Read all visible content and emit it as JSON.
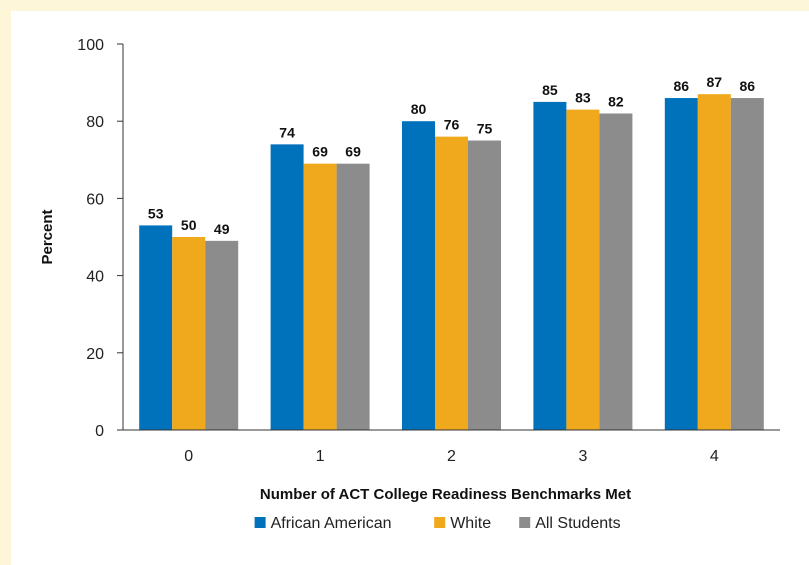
{
  "chart_data": {
    "type": "bar",
    "title": "",
    "xlabel": "Number of ACT College Readiness Benchmarks Met",
    "ylabel": "Percent",
    "categories": [
      "0",
      "1",
      "2",
      "3",
      "4"
    ],
    "ylim": [
      0,
      100
    ],
    "yticks": [
      "0",
      "20",
      "40",
      "60",
      "80",
      "100"
    ],
    "grid": false,
    "legend_position": "bottom",
    "series": [
      {
        "name": "African American",
        "color": "#0072bc",
        "values": [
          53,
          74,
          80,
          85,
          86
        ]
      },
      {
        "name": "White",
        "color": "#f0a81c",
        "values": [
          50,
          69,
          76,
          83,
          87
        ]
      },
      {
        "name": "All Students",
        "color": "#8c8c8c",
        "values": [
          49,
          69,
          75,
          82,
          86
        ]
      }
    ]
  }
}
